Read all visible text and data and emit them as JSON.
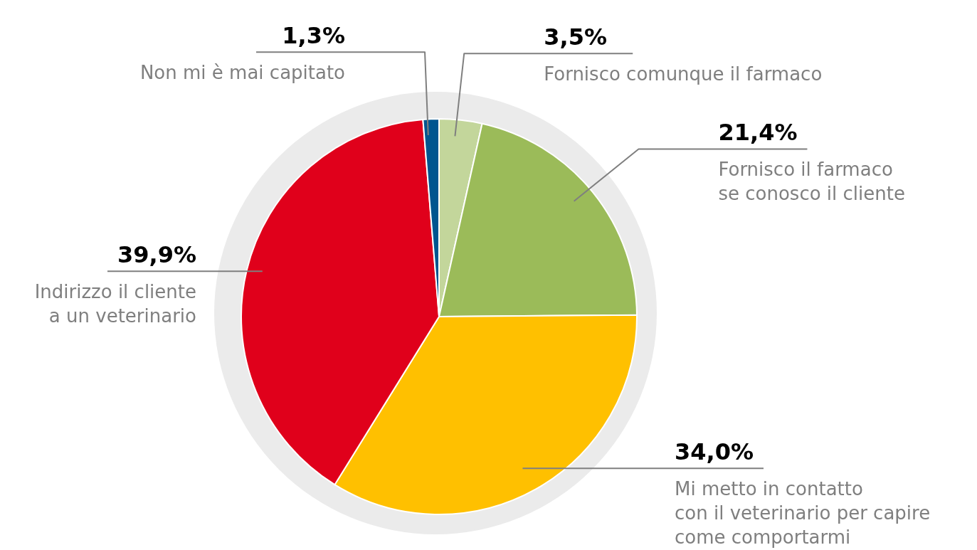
{
  "chart_data": {
    "type": "pie",
    "categories": [
      "Fornisco comunque il farmaco",
      "Fornisco il farmaco\nse conosco il cliente",
      "Mi metto in contatto\ncon il veterinario per capire\ncome comportarmi",
      "Indirizzo il cliente\na un veterinario",
      "Non mi è mai capitato"
    ],
    "values": [
      3.5,
      21.4,
      34.0,
      39.9,
      1.3
    ],
    "value_labels": [
      "3,5%",
      "21,4%",
      "34,0%",
      "39,9%",
      "1,3%"
    ],
    "colors": [
      "#c3d69b",
      "#9bbb59",
      "#ffc000",
      "#e0001b",
      "#00558f"
    ]
  }
}
